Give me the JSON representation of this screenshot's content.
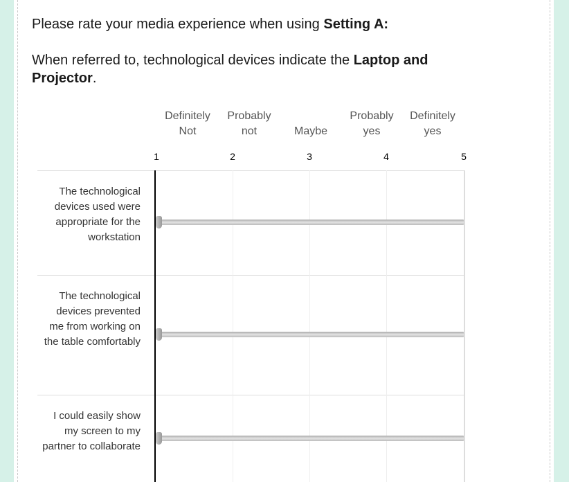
{
  "question": {
    "line1_text": "Please rate your media experience when using ",
    "line1_bold": "Setting A:",
    "line2_text": "When referred to, technological devices indicate the ",
    "line2_bold": "Laptop and Projector",
    "line2_end": "."
  },
  "scale": {
    "labels": [
      [
        "Definitely",
        "Not"
      ],
      [
        "Probably",
        "not"
      ],
      [
        "",
        "Maybe"
      ],
      [
        "Probably",
        "yes"
      ],
      [
        "Definitely",
        "yes"
      ]
    ],
    "ticks": [
      "1",
      "2",
      "3",
      "4",
      "5"
    ],
    "min": 1,
    "max": 5
  },
  "items": [
    {
      "statement": "The technological devices used were appropriate for the workstation",
      "value": 1
    },
    {
      "statement": "The technological devices prevented me from working on the table comfortably",
      "value": 1
    },
    {
      "statement": "I could easily show my screen to my partner to collaborate",
      "value": 1
    }
  ]
}
